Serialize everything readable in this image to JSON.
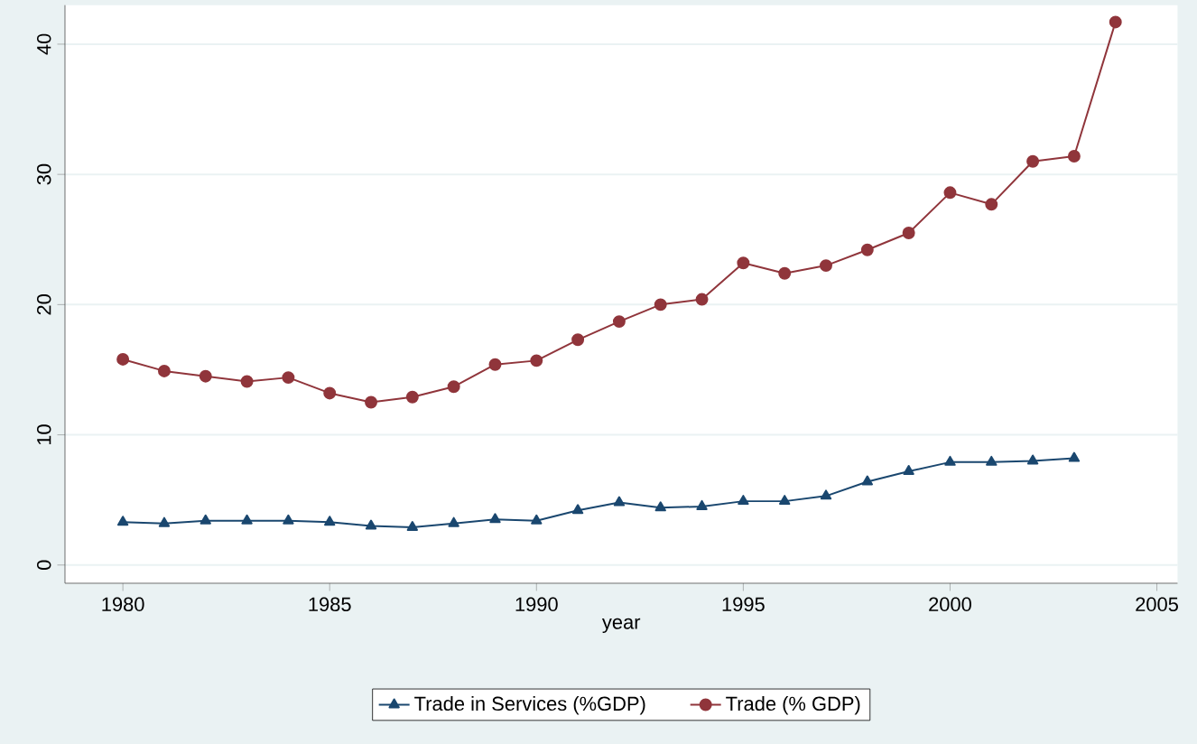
{
  "chart_data": {
    "type": "line",
    "xlabel": "year",
    "x": [
      1980,
      1981,
      1982,
      1983,
      1984,
      1985,
      1986,
      1987,
      1988,
      1989,
      1990,
      1991,
      1992,
      1993,
      1994,
      1995,
      1996,
      1997,
      1998,
      1999,
      2000,
      2001,
      2002,
      2003,
      2004
    ],
    "series": [
      {
        "name": "Trade in Services (%GDP)",
        "color": "#1a476f",
        "marker": "triangle",
        "values": [
          3.3,
          3.2,
          3.4,
          3.4,
          3.4,
          3.3,
          3.0,
          2.9,
          3.2,
          3.5,
          3.4,
          4.2,
          4.8,
          4.4,
          4.5,
          4.9,
          4.9,
          5.3,
          6.4,
          7.2,
          7.9,
          7.9,
          8.0,
          8.2,
          null
        ]
      },
      {
        "name": "Trade  (% GDP)",
        "color": "#90353b",
        "marker": "circle",
        "values": [
          15.8,
          14.9,
          14.5,
          14.1,
          14.4,
          13.2,
          12.5,
          12.9,
          13.7,
          15.4,
          15.7,
          17.3,
          18.7,
          20.0,
          20.4,
          23.2,
          22.4,
          23.0,
          24.2,
          25.5,
          28.6,
          27.7,
          31.0,
          31.4,
          41.7
        ]
      }
    ],
    "xlim": [
      1978.6,
      2005.5
    ],
    "ylim": [
      -1.4,
      43
    ],
    "xticks": [
      1980,
      1985,
      1990,
      1995,
      2000,
      2005
    ],
    "yticks": [
      0,
      10,
      20,
      30,
      40
    ],
    "grid": "y",
    "legend": "bottom",
    "line_style": "solid"
  }
}
